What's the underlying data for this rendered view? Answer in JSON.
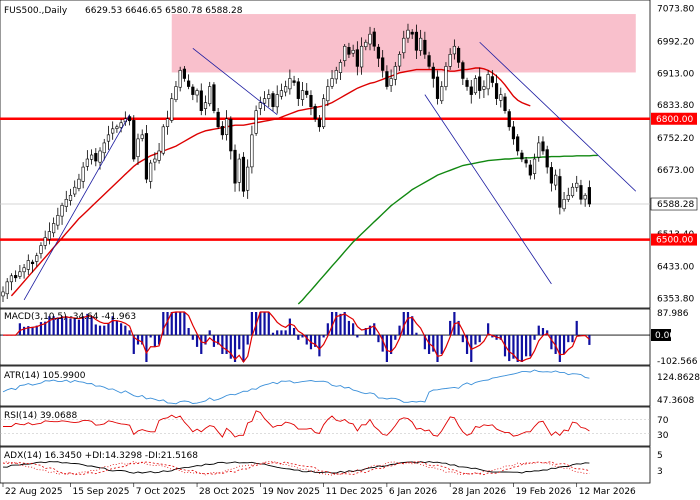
{
  "header": {
    "symbol": "FUS500.,Daily",
    "ohlc": "6629.53 6646.65 6580.78 6588.28"
  },
  "colors": {
    "bull": "#ffffff",
    "candle": "#000000",
    "resistance_zone": "#f9c0cc",
    "level_line": "#ff0000",
    "ma_fast": "#dd0000",
    "ma_slow": "#118811",
    "trendline": "#1a1aa0",
    "macd_hist": "#1010a0",
    "macd_signal": "#e00000",
    "atr": "#3a8fd9",
    "rsi": "#e00000",
    "adx_main": "#000000",
    "adx_pdi": "#e00000",
    "adx_mdi": "#e00000",
    "price_tag_bg": "#ffffff",
    "level_tag_bg": "#ff0000"
  },
  "x_labels": [
    "22 Aug 2025",
    "15 Sep 2025",
    "7 Oct 2025",
    "28 Oct 2025",
    "19 Nov 2025",
    "11 Dec 2025",
    "6 Jan 2026",
    "28 Jan 2026",
    "19 Feb 2026",
    "12 Mar 2026"
  ],
  "price_axis": {
    "labels": [
      "7073.80",
      "6992.20",
      "6913.00",
      "6833.80",
      "6752.20",
      "6673.00",
      "6588.28",
      "6513.40",
      "6433.00",
      "6353.80"
    ],
    "current_price": "6588.28",
    "level_tags": [
      "6800.00",
      "6500.00"
    ]
  },
  "macd": {
    "label": "MACD(3,10,5) -34.64 -41.963",
    "axis": [
      "87.986",
      "0.00",
      "-102.566"
    ]
  },
  "atr": {
    "label": "ATR(14) 105.9900",
    "axis": [
      "124.8628",
      "47.3608"
    ]
  },
  "rsi": {
    "label": "RSI(14) 39.0688",
    "axis": [
      "70",
      "30"
    ]
  },
  "adx": {
    "label": "ADX(14) 16.3450 +DI:14.3298 -DI:21.5168",
    "axis": [
      "5",
      "3"
    ]
  },
  "chart_data": {
    "type": "candlestick",
    "title": "FUS500.,Daily",
    "timeframe": "Daily",
    "ohlc_last": {
      "open": 6629.53,
      "high": 6646.65,
      "low": 6580.78,
      "close": 6588.28
    },
    "ylim": [
      6340,
      7080
    ],
    "y_ticks": [
      7073.8,
      6992.2,
      6913.0,
      6833.8,
      6752.2,
      6673.0,
      6588.28,
      6513.4,
      6433.0,
      6353.8
    ],
    "x_tick_labels": [
      "22 Aug 2025",
      "15 Sep 2025",
      "7 Oct 2025",
      "28 Oct 2025",
      "19 Nov 2025",
      "11 Dec 2025",
      "6 Jan 2026",
      "28 Jan 2026",
      "19 Feb 2026",
      "12 Mar 2026"
    ],
    "x_tick_index": [
      0,
      16,
      31,
      46,
      61,
      76,
      91,
      106,
      121,
      136
    ],
    "horizontal_levels": [
      6800.0,
      6500.0
    ],
    "resistance_zone": {
      "from_index": 40,
      "to_index": 150,
      "low": 6915,
      "high": 7060
    },
    "closes": [
      6370,
      6395,
      6410,
      6405,
      6420,
      6430,
      6448,
      6440,
      6460,
      6485,
      6505,
      6520,
      6540,
      6560,
      6585,
      6600,
      6610,
      6630,
      6650,
      6680,
      6700,
      6710,
      6695,
      6720,
      6740,
      6760,
      6775,
      6780,
      6790,
      6800,
      6795,
      6700,
      6750,
      6760,
      6650,
      6690,
      6700,
      6720,
      6780,
      6800,
      6850,
      6880,
      6920,
      6900,
      6880,
      6860,
      6870,
      6820,
      6840,
      6880,
      6820,
      6780,
      6760,
      6800,
      6720,
      6640,
      6700,
      6620,
      6680,
      6760,
      6820,
      6840,
      6850,
      6860,
      6830,
      6860,
      6870,
      6880,
      6900,
      6890,
      6850,
      6870,
      6860,
      6830,
      6800,
      6780,
      6850,
      6880,
      6900,
      6920,
      6940,
      6980,
      6960,
      6970,
      6930,
      6980,
      6990,
      7010,
      6980,
      6950,
      6920,
      6880,
      6900,
      6930,
      6960,
      7000,
      7020,
      7010,
      6970,
      7000,
      6960,
      6930,
      6900,
      6850,
      6880,
      6930,
      6960,
      6980,
      6940,
      6900,
      6880,
      6860,
      6900,
      6870,
      6880,
      6910,
      6890,
      6850,
      6860,
      6820,
      6780,
      6750,
      6720,
      6700,
      6690,
      6660,
      6700,
      6740,
      6720,
      6680,
      6640,
      6660,
      6580,
      6600,
      6610,
      6630,
      6640,
      6600,
      6610,
      6588.28
    ],
    "ma_fast": {
      "start_index": 2,
      "values": [
        6360,
        6372,
        6384,
        6396,
        6408,
        6420,
        6432,
        6444,
        6456,
        6468,
        6480,
        6492,
        6504,
        6516,
        6528,
        6540,
        6552,
        6562,
        6572,
        6582,
        6592,
        6602,
        6612,
        6622,
        6632,
        6642,
        6652,
        6662,
        6672,
        6682,
        6690,
        6696,
        6702,
        6708,
        6712,
        6716,
        6720,
        6724,
        6728,
        6732,
        6738,
        6744,
        6750,
        6756,
        6762,
        6766,
        6770,
        6772,
        6774,
        6776,
        6778,
        6780,
        6782,
        6784,
        6784,
        6784,
        6786,
        6788,
        6790,
        6792,
        6794,
        6796,
        6798,
        6800,
        6804,
        6808,
        6812,
        6816,
        6820,
        6822,
        6824,
        6826,
        6828,
        6830,
        6832,
        6836,
        6840,
        6846,
        6852,
        6858,
        6864,
        6870,
        6876,
        6880,
        6884,
        6888,
        6890,
        6894,
        6898,
        6902,
        6906,
        6910,
        6914,
        6916,
        6918,
        6920,
        6922,
        6922,
        6922,
        6922,
        6922,
        6922,
        6922,
        6920,
        6918,
        6918,
        6920,
        6922,
        6922,
        6924,
        6926,
        6926,
        6924,
        6920,
        6914,
        6906,
        6896,
        6884,
        6870,
        6856,
        6846,
        6840,
        6836,
        6832
      ]
    },
    "ma_slow": {
      "start_index": 70,
      "values": [
        6340,
        6350,
        6362,
        6374,
        6386,
        6398,
        6410,
        6422,
        6434,
        6446,
        6458,
        6470,
        6482,
        6494,
        6504,
        6514,
        6524,
        6534,
        6544,
        6554,
        6564,
        6574,
        6584,
        6592,
        6600,
        6608,
        6616,
        6624,
        6630,
        6636,
        6642,
        6648,
        6654,
        6660,
        6664,
        6668,
        6672,
        6676,
        6680,
        6684,
        6686,
        6688,
        6690,
        6692,
        6694,
        6696,
        6697,
        6698,
        6699,
        6700,
        6700,
        6701,
        6702,
        6702,
        6703,
        6703,
        6704,
        6704,
        6705,
        6705,
        6706,
        6706,
        6706,
        6707,
        6707,
        6707,
        6708,
        6708,
        6708,
        6708,
        6709,
        6709
      ]
    },
    "trendlines": [
      {
        "from": [
          5,
          6350
        ],
        "to": [
          30,
          6810
        ]
      },
      {
        "from": [
          45,
          6975
        ],
        "to": [
          65,
          6810
        ]
      },
      {
        "from": [
          100,
          6860
        ],
        "to": [
          130,
          6390
        ]
      },
      {
        "from": [
          113,
          6990
        ],
        "to": [
          150,
          6620
        ]
      }
    ],
    "indicators": {
      "macd": {
        "params": [
          3,
          10,
          5
        ],
        "main": -34.64,
        "signal": -41.963,
        "ylim": [
          -102.566,
          87.986
        ]
      },
      "atr": {
        "period": 14,
        "value": 105.99,
        "ylim": [
          47.3608,
          124.8628
        ]
      },
      "rsi": {
        "period": 14,
        "value": 39.0688,
        "levels": [
          70,
          30
        ]
      },
      "adx": {
        "period": 14,
        "adx": 16.345,
        "plus_di": 14.3298,
        "minus_di": 21.5168
      }
    }
  }
}
